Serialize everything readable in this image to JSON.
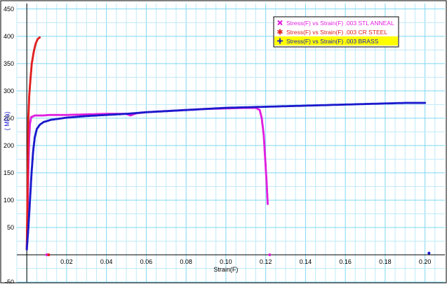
{
  "chart_data": {
    "type": "scatter",
    "xlabel": "Strain(F)",
    "ylabel": "( MPa)",
    "xlim": [
      -0.005,
      0.21
    ],
    "ylim": [
      -50,
      460
    ],
    "x_ticks": [
      0.02,
      0.04,
      0.06,
      0.08,
      0.1,
      0.12,
      0.14,
      0.16,
      0.18,
      0.2
    ],
    "x_tick_labels": [
      "0.02",
      "0.04",
      "0.06",
      "0.08",
      "0.10",
      "0.12",
      "0.14",
      "0.16",
      "0.18",
      "0.20"
    ],
    "y_ticks": [
      -50,
      50,
      100,
      150,
      200,
      250,
      300,
      350,
      400,
      450
    ],
    "y_tick_labels": [
      "-50",
      "50",
      "100",
      "150",
      "200",
      "250",
      "300",
      "350",
      "400",
      "450"
    ],
    "grid": true,
    "legend_position": "top-right",
    "series": [
      {
        "name": "Stress(F) vs Strain(F) .003 STL ANNEAL",
        "color": "#e020e0",
        "marker": "x-icon",
        "highlighted": false,
        "points": [
          [
            0,
            15
          ],
          [
            0.0004,
            80
          ],
          [
            0.0008,
            160
          ],
          [
            0.0012,
            215
          ],
          [
            0.0016,
            240
          ],
          [
            0.0022,
            252
          ],
          [
            0.004,
            255
          ],
          [
            0.008,
            255
          ],
          [
            0.012,
            256
          ],
          [
            0.02,
            256
          ],
          [
            0.03,
            257
          ],
          [
            0.04,
            258
          ],
          [
            0.05,
            258
          ],
          [
            0.052,
            255
          ],
          [
            0.055,
            259
          ],
          [
            0.06,
            261
          ],
          [
            0.07,
            263
          ],
          [
            0.08,
            265
          ],
          [
            0.09,
            267
          ],
          [
            0.1,
            268
          ],
          [
            0.11,
            269
          ],
          [
            0.115,
            269
          ],
          [
            0.117,
            265
          ],
          [
            0.118,
            250
          ],
          [
            0.119,
            220
          ],
          [
            0.1195,
            190
          ],
          [
            0.12,
            160
          ],
          [
            0.1205,
            130
          ],
          [
            0.121,
            93
          ],
          [
            0.01,
            0
          ],
          [
            0.122,
            0
          ]
        ]
      },
      {
        "name": "Stress(F) vs Strain(F) .003 CR STEEL",
        "color": "#e02020",
        "marker": "asterisk-icon",
        "highlighted": false,
        "points": [
          [
            0,
            10
          ],
          [
            0.0003,
            100
          ],
          [
            0.0006,
            200
          ],
          [
            0.0008,
            250
          ],
          [
            0.0012,
            290
          ],
          [
            0.0018,
            320
          ],
          [
            0.0025,
            350
          ],
          [
            0.0035,
            372
          ],
          [
            0.0045,
            387
          ],
          [
            0.0055,
            395
          ],
          [
            0.0065,
            398
          ],
          [
            0.011,
            0
          ]
        ]
      },
      {
        "name": "Stress(F) vs Strain(F) .003 BRASS",
        "color": "#1a1acc",
        "marker": "cross-icon",
        "highlighted": true,
        "points": [
          [
            0,
            10
          ],
          [
            0.0008,
            50
          ],
          [
            0.0016,
            100
          ],
          [
            0.0024,
            150
          ],
          [
            0.0032,
            190
          ],
          [
            0.004,
            215
          ],
          [
            0.005,
            230
          ],
          [
            0.0065,
            238
          ],
          [
            0.0085,
            243
          ],
          [
            0.012,
            247
          ],
          [
            0.02,
            251
          ],
          [
            0.03,
            254
          ],
          [
            0.04,
            256
          ],
          [
            0.05,
            258
          ],
          [
            0.06,
            261
          ],
          [
            0.07,
            263
          ],
          [
            0.08,
            265
          ],
          [
            0.09,
            267
          ],
          [
            0.1,
            269
          ],
          [
            0.11,
            270
          ],
          [
            0.12,
            271
          ],
          [
            0.13,
            272
          ],
          [
            0.14,
            273
          ],
          [
            0.15,
            274
          ],
          [
            0.16,
            275
          ],
          [
            0.17,
            276
          ],
          [
            0.18,
            277
          ],
          [
            0.19,
            278
          ],
          [
            0.2,
            278
          ],
          [
            0.202,
            3
          ]
        ]
      }
    ]
  }
}
